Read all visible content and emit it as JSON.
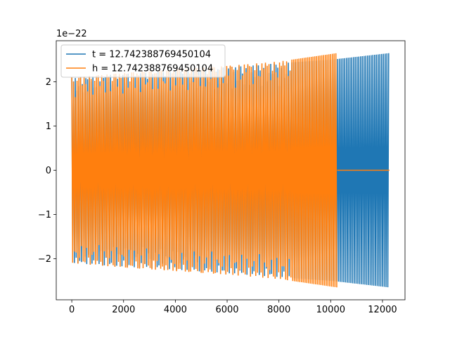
{
  "chart_data": {
    "type": "line",
    "title": "",
    "xlabel": "",
    "ylabel": "",
    "y_offset_text": "1e−22",
    "xlim": [
      -600,
      12870
    ],
    "ylim": [
      -2.93,
      2.93
    ],
    "x_ticks": [
      0,
      2000,
      4000,
      6000,
      8000,
      10000,
      12000
    ],
    "x_tick_labels": [
      "0",
      "2000",
      "4000",
      "6000",
      "8000",
      "10000",
      "12000"
    ],
    "y_ticks": [
      -2,
      -1,
      0,
      1,
      2
    ],
    "y_tick_labels": [
      "−2",
      "−1",
      "0",
      "1",
      "2"
    ],
    "grid": false,
    "legend_placement": "top-left",
    "series": [
      {
        "name": "t = 12.742388769450104",
        "color": "#1f77b4",
        "description": "dense oscillation, amplitude envelope",
        "x_range": [
          0,
          12270
        ],
        "envelope_upper": [
          [
            0,
            2.1
          ],
          [
            2000,
            2.18
          ],
          [
            4000,
            2.25
          ],
          [
            6000,
            2.33
          ],
          [
            8000,
            2.42
          ],
          [
            10000,
            2.5
          ],
          [
            12270,
            2.65
          ]
        ],
        "envelope_lower": [
          [
            0,
            -2.1
          ],
          [
            2000,
            -2.18
          ],
          [
            4000,
            -2.25
          ],
          [
            6000,
            -2.33
          ],
          [
            8000,
            -2.42
          ],
          [
            10000,
            -2.5
          ],
          [
            12270,
            -2.65
          ]
        ]
      },
      {
        "name": "h = 12.742388769450104",
        "color": "#ff7f0e",
        "description": "dense oscillation until ~10250, then flat at 0",
        "x_range": [
          0,
          12270
        ],
        "oscillation_end": 10250,
        "envelope_upper": [
          [
            0,
            2.1
          ],
          [
            2000,
            2.2
          ],
          [
            4000,
            2.28
          ],
          [
            6000,
            2.36
          ],
          [
            8000,
            2.46
          ],
          [
            10250,
            2.65
          ]
        ],
        "envelope_lower": [
          [
            0,
            -2.1
          ],
          [
            2000,
            -2.2
          ],
          [
            4000,
            -2.28
          ],
          [
            6000,
            -2.36
          ],
          [
            8000,
            -2.46
          ],
          [
            10250,
            -2.65
          ]
        ]
      }
    ]
  }
}
